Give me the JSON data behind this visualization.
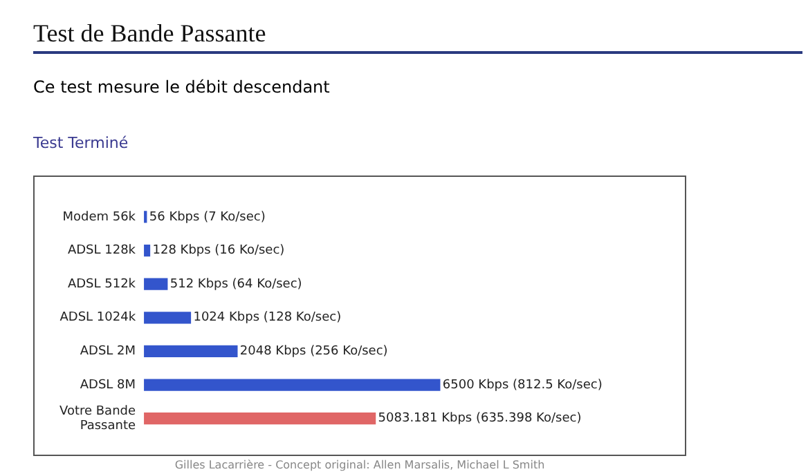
{
  "chart_data": {
    "type": "bar",
    "orientation": "horizontal",
    "title": "Test de Bande Passante",
    "subtitle": "Ce test mesure le débit descendant",
    "annotations": [
      "Test Terminé",
      "Gilles Lacarrière - Concept original: Allen Marsalis, Michael L Smith"
    ],
    "categories": [
      "Modem 56k",
      "ADSL 128k",
      "ADSL 512k",
      "ADSL 1024k",
      "ADSL 2M",
      "ADSL 8M",
      "Votre Bande Passante"
    ],
    "values": [
      56,
      128,
      512,
      1024,
      2048,
      6500,
      5083.181
    ],
    "colors": [
      "#3355cc",
      "#3355cc",
      "#3355cc",
      "#3355cc",
      "#3355cc",
      "#3355cc",
      "#e06666"
    ],
    "value_labels": [
      "56 Kbps (7 Ko/sec)",
      "128 Kbps (16 Ko/sec)",
      "512 Kbps (64 Ko/sec)",
      "1024 Kbps (128 Ko/sec)",
      "2048 Kbps (256 Ko/sec)",
      "6500 Kbps (812.5 Ko/sec)",
      "5083.181 Kbps (635.398 Ko/sec)"
    ],
    "xlim": [
      0,
      11700
    ],
    "tick_labels": "y",
    "grid": false,
    "legend": false
  }
}
